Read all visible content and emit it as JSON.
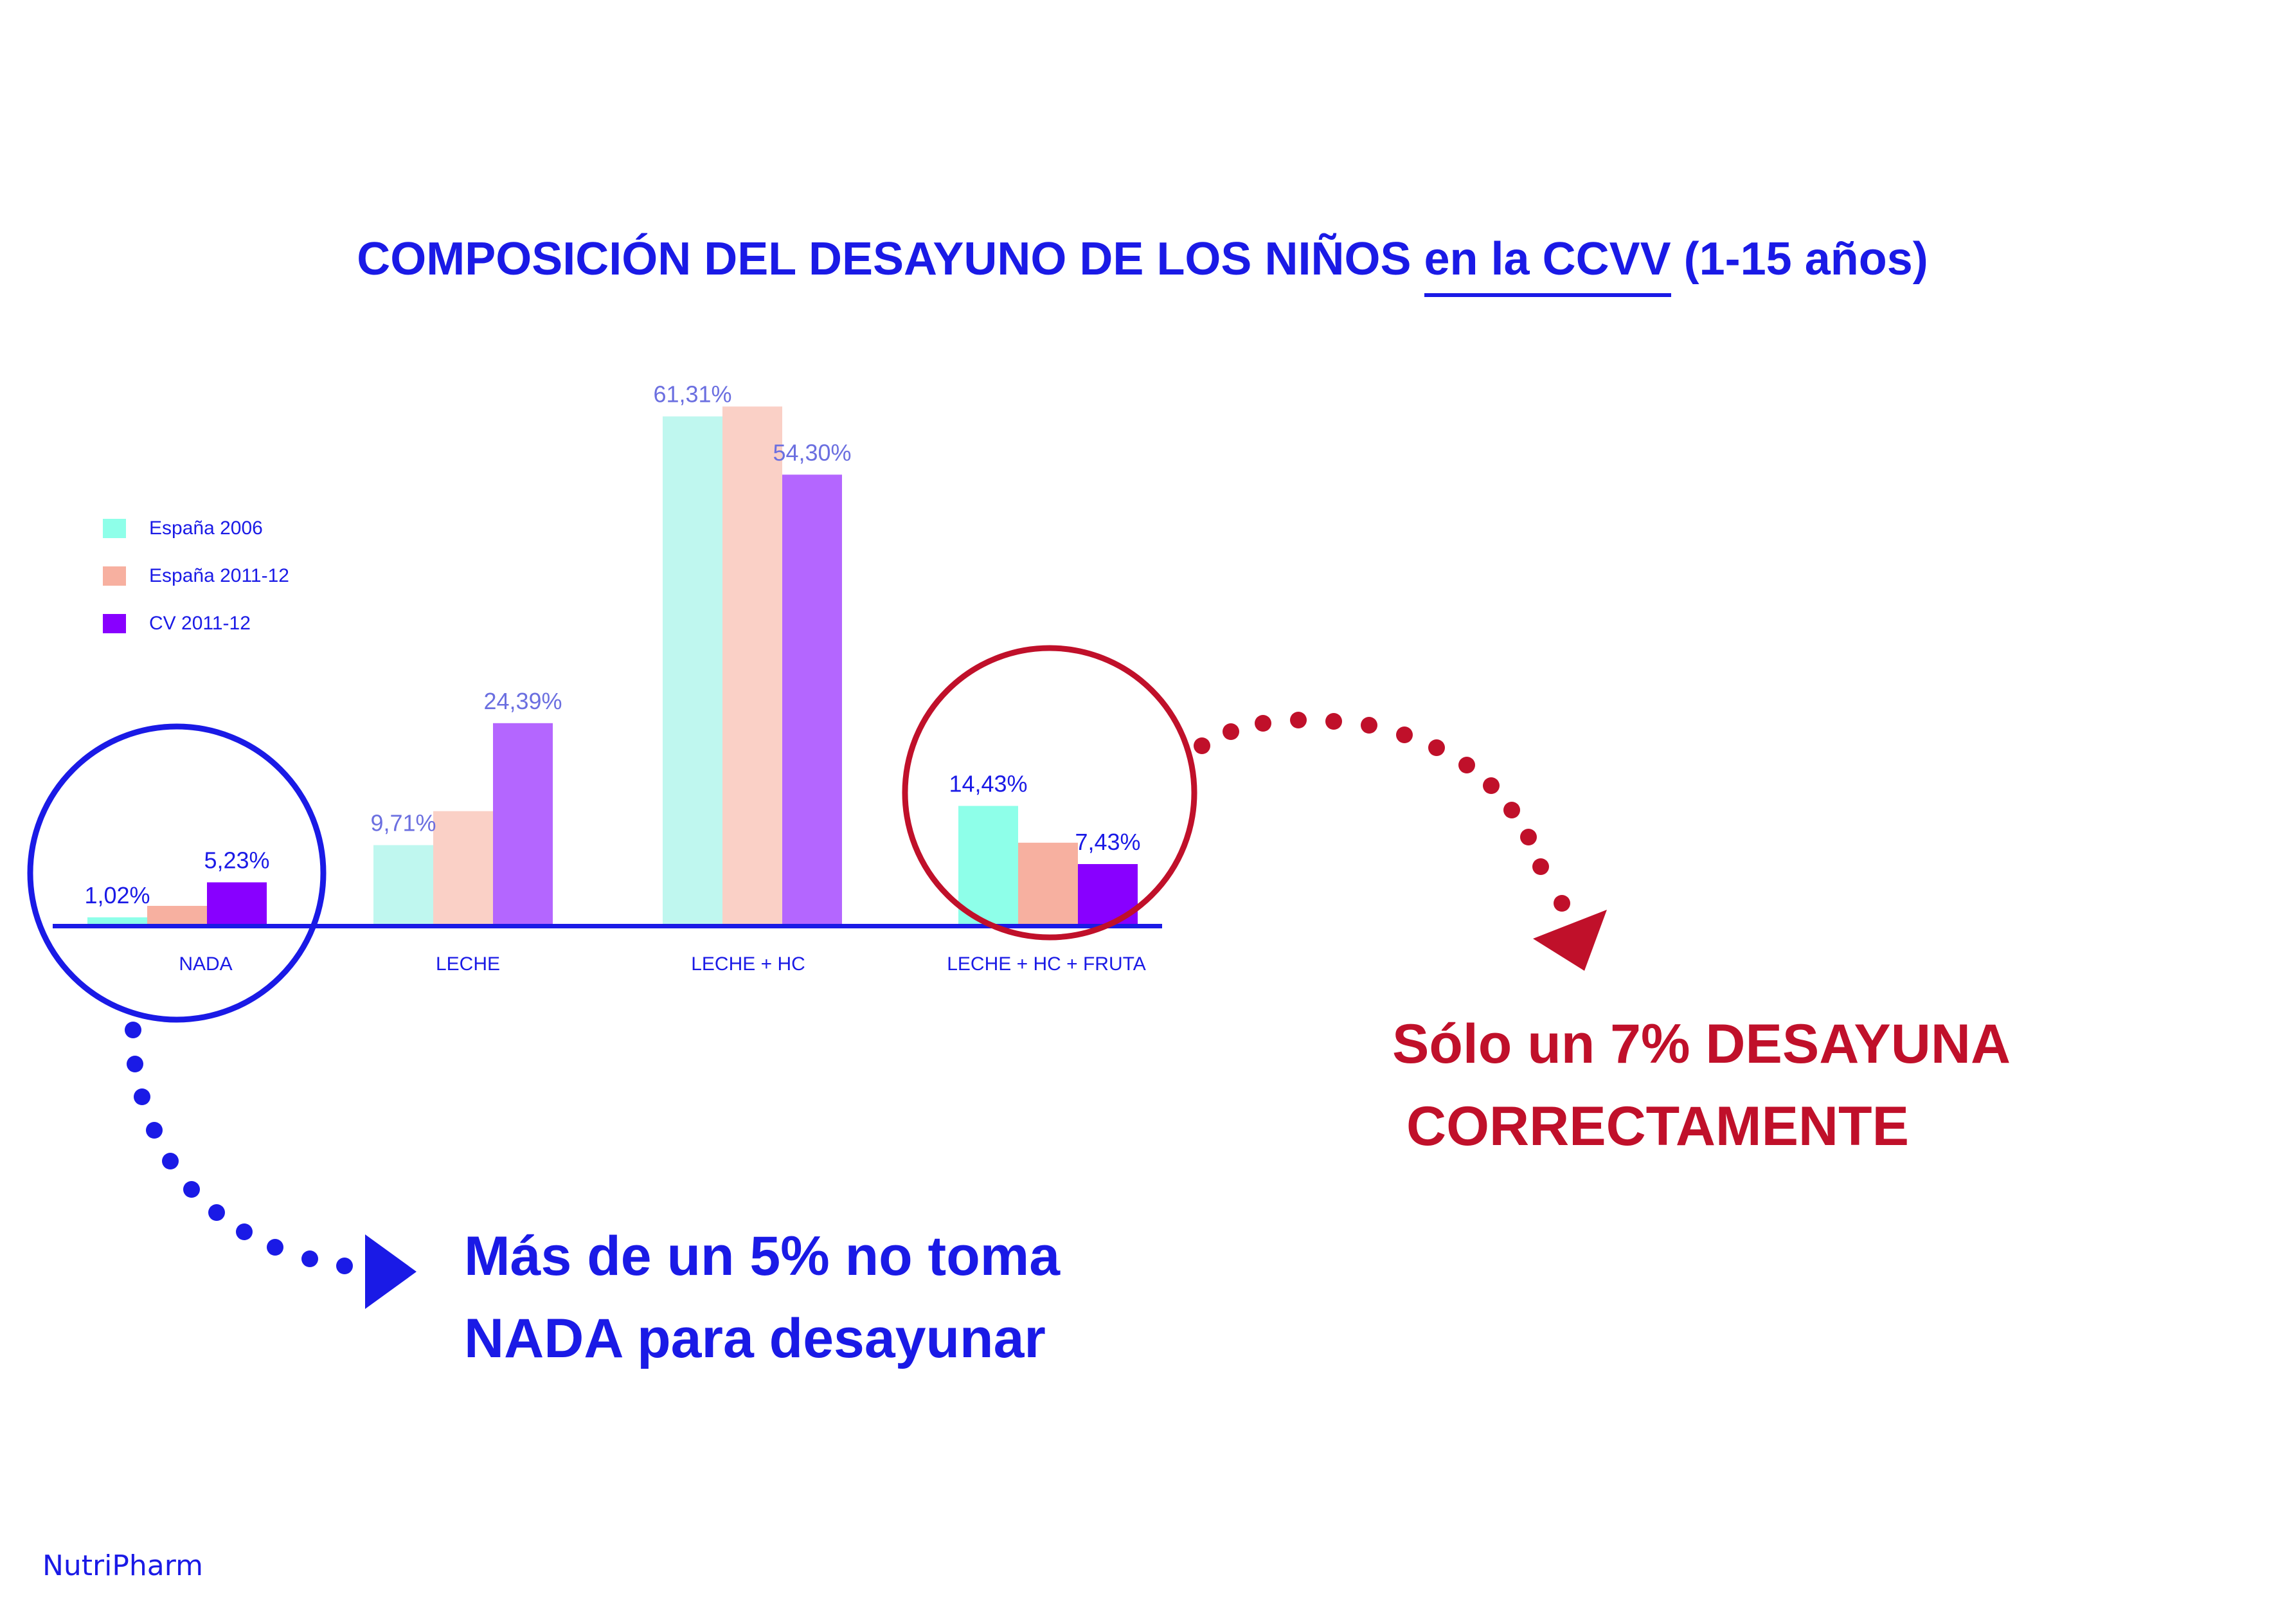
{
  "title": {
    "before": "COMPOSICIÓN DEL DESAYUNO DE LOS NIÑOS ",
    "underlined": "en la CCVV",
    "after": " (1-15 años)"
  },
  "colors": {
    "text_blue": "#1a1ae6",
    "text_red": "#c0102a",
    "label_light": "#6b6fe0",
    "label_dark": "#1a1ae6"
  },
  "chart_data": {
    "type": "bar",
    "categories": [
      "NADA",
      "LECHE",
      "LECHE + HC",
      "LECHE + HC + FRUTA"
    ],
    "series": [
      {
        "name": "España 2006",
        "color": "#8effe9",
        "color_dim": "#bff7ef",
        "values": [
          1.02,
          9.71,
          61.31,
          14.43
        ]
      },
      {
        "name": "España 2011-12",
        "color": "#f7b0a0",
        "color_dim": "#fad0c6",
        "values": [
          2.4,
          13.8,
          62.5,
          10.0
        ]
      },
      {
        "name": "CV 2011-12",
        "color": "#8800ff",
        "color_dim": "#b466ff",
        "values": [
          5.23,
          24.39,
          54.3,
          7.43
        ]
      }
    ],
    "data_labels": [
      {
        "category": 0,
        "series": 0,
        "text": "1,02%",
        "tone": "dark"
      },
      {
        "category": 0,
        "series": 2,
        "text": "5,23%",
        "tone": "dark"
      },
      {
        "category": 1,
        "series": 0,
        "text": "9,71%",
        "tone": "light"
      },
      {
        "category": 1,
        "series": 2,
        "text": "24,39%",
        "tone": "light"
      },
      {
        "category": 2,
        "series": 0,
        "text": "61,31%",
        "tone": "light"
      },
      {
        "category": 2,
        "series": 2,
        "text": "54,30%",
        "tone": "light"
      },
      {
        "category": 3,
        "series": 0,
        "text": "14,43%",
        "tone": "dark"
      },
      {
        "category": 3,
        "series": 2,
        "text": "7,43%",
        "tone": "dark"
      }
    ],
    "highlighted_categories": [
      0,
      3
    ],
    "ylim": [
      0,
      65
    ]
  },
  "callouts": {
    "left": {
      "line1": "Más de un 5% no toma",
      "line2": "NADA para desayunar"
    },
    "right": {
      "line1": "Sólo un 7% DESAYUNA",
      "line2": "CORRECTAMENTE"
    }
  },
  "brand": "NutriPharm"
}
